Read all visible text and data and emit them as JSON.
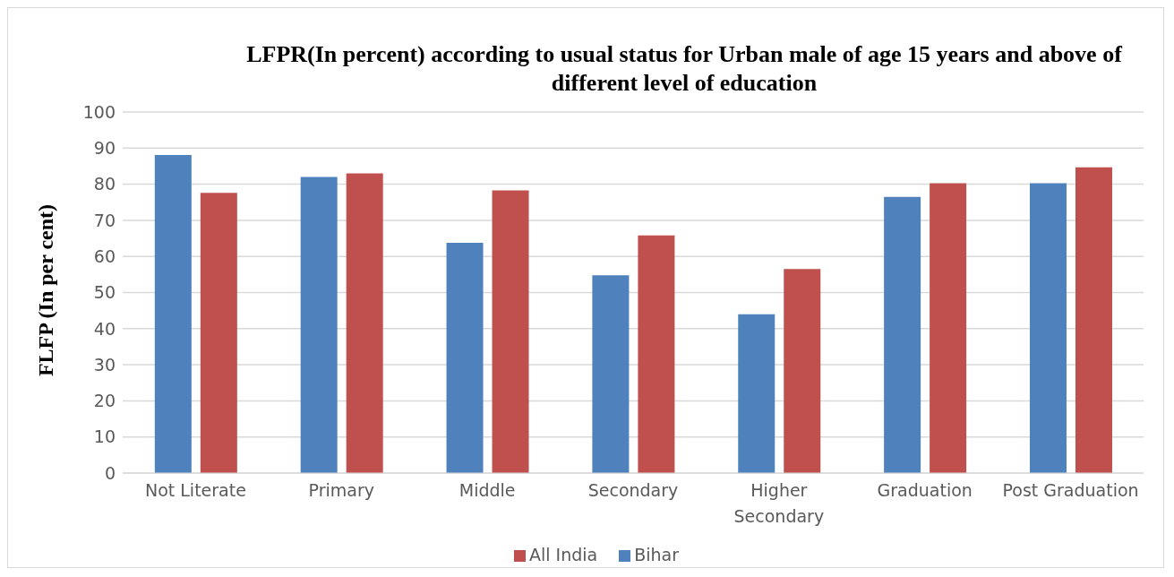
{
  "chart_data": {
    "type": "bar",
    "title": "LFPR(In percent) according to usual status for Urban male of age 15 years and above of different level of education",
    "ylabel": "FLFP (In per cent)",
    "categories": [
      "Not Literate",
      "Primary",
      "Middle",
      "Secondary",
      "Higher Secondary",
      "Graduation",
      "Post Graduation"
    ],
    "series": [
      {
        "name": "Bihar",
        "color": "#4f81bd",
        "values": [
          88.1,
          82.0,
          63.8,
          54.8,
          44.0,
          76.5,
          80.3
        ]
      },
      {
        "name": "All India",
        "color": "#c0504d",
        "values": [
          77.6,
          83.0,
          78.3,
          65.8,
          56.5,
          80.3,
          84.7
        ]
      }
    ],
    "ylim": [
      0,
      100
    ],
    "yticks": [
      0,
      10,
      20,
      30,
      40,
      50,
      60,
      70,
      80,
      90,
      100
    ],
    "grid": "y",
    "legend": "bottom"
  }
}
